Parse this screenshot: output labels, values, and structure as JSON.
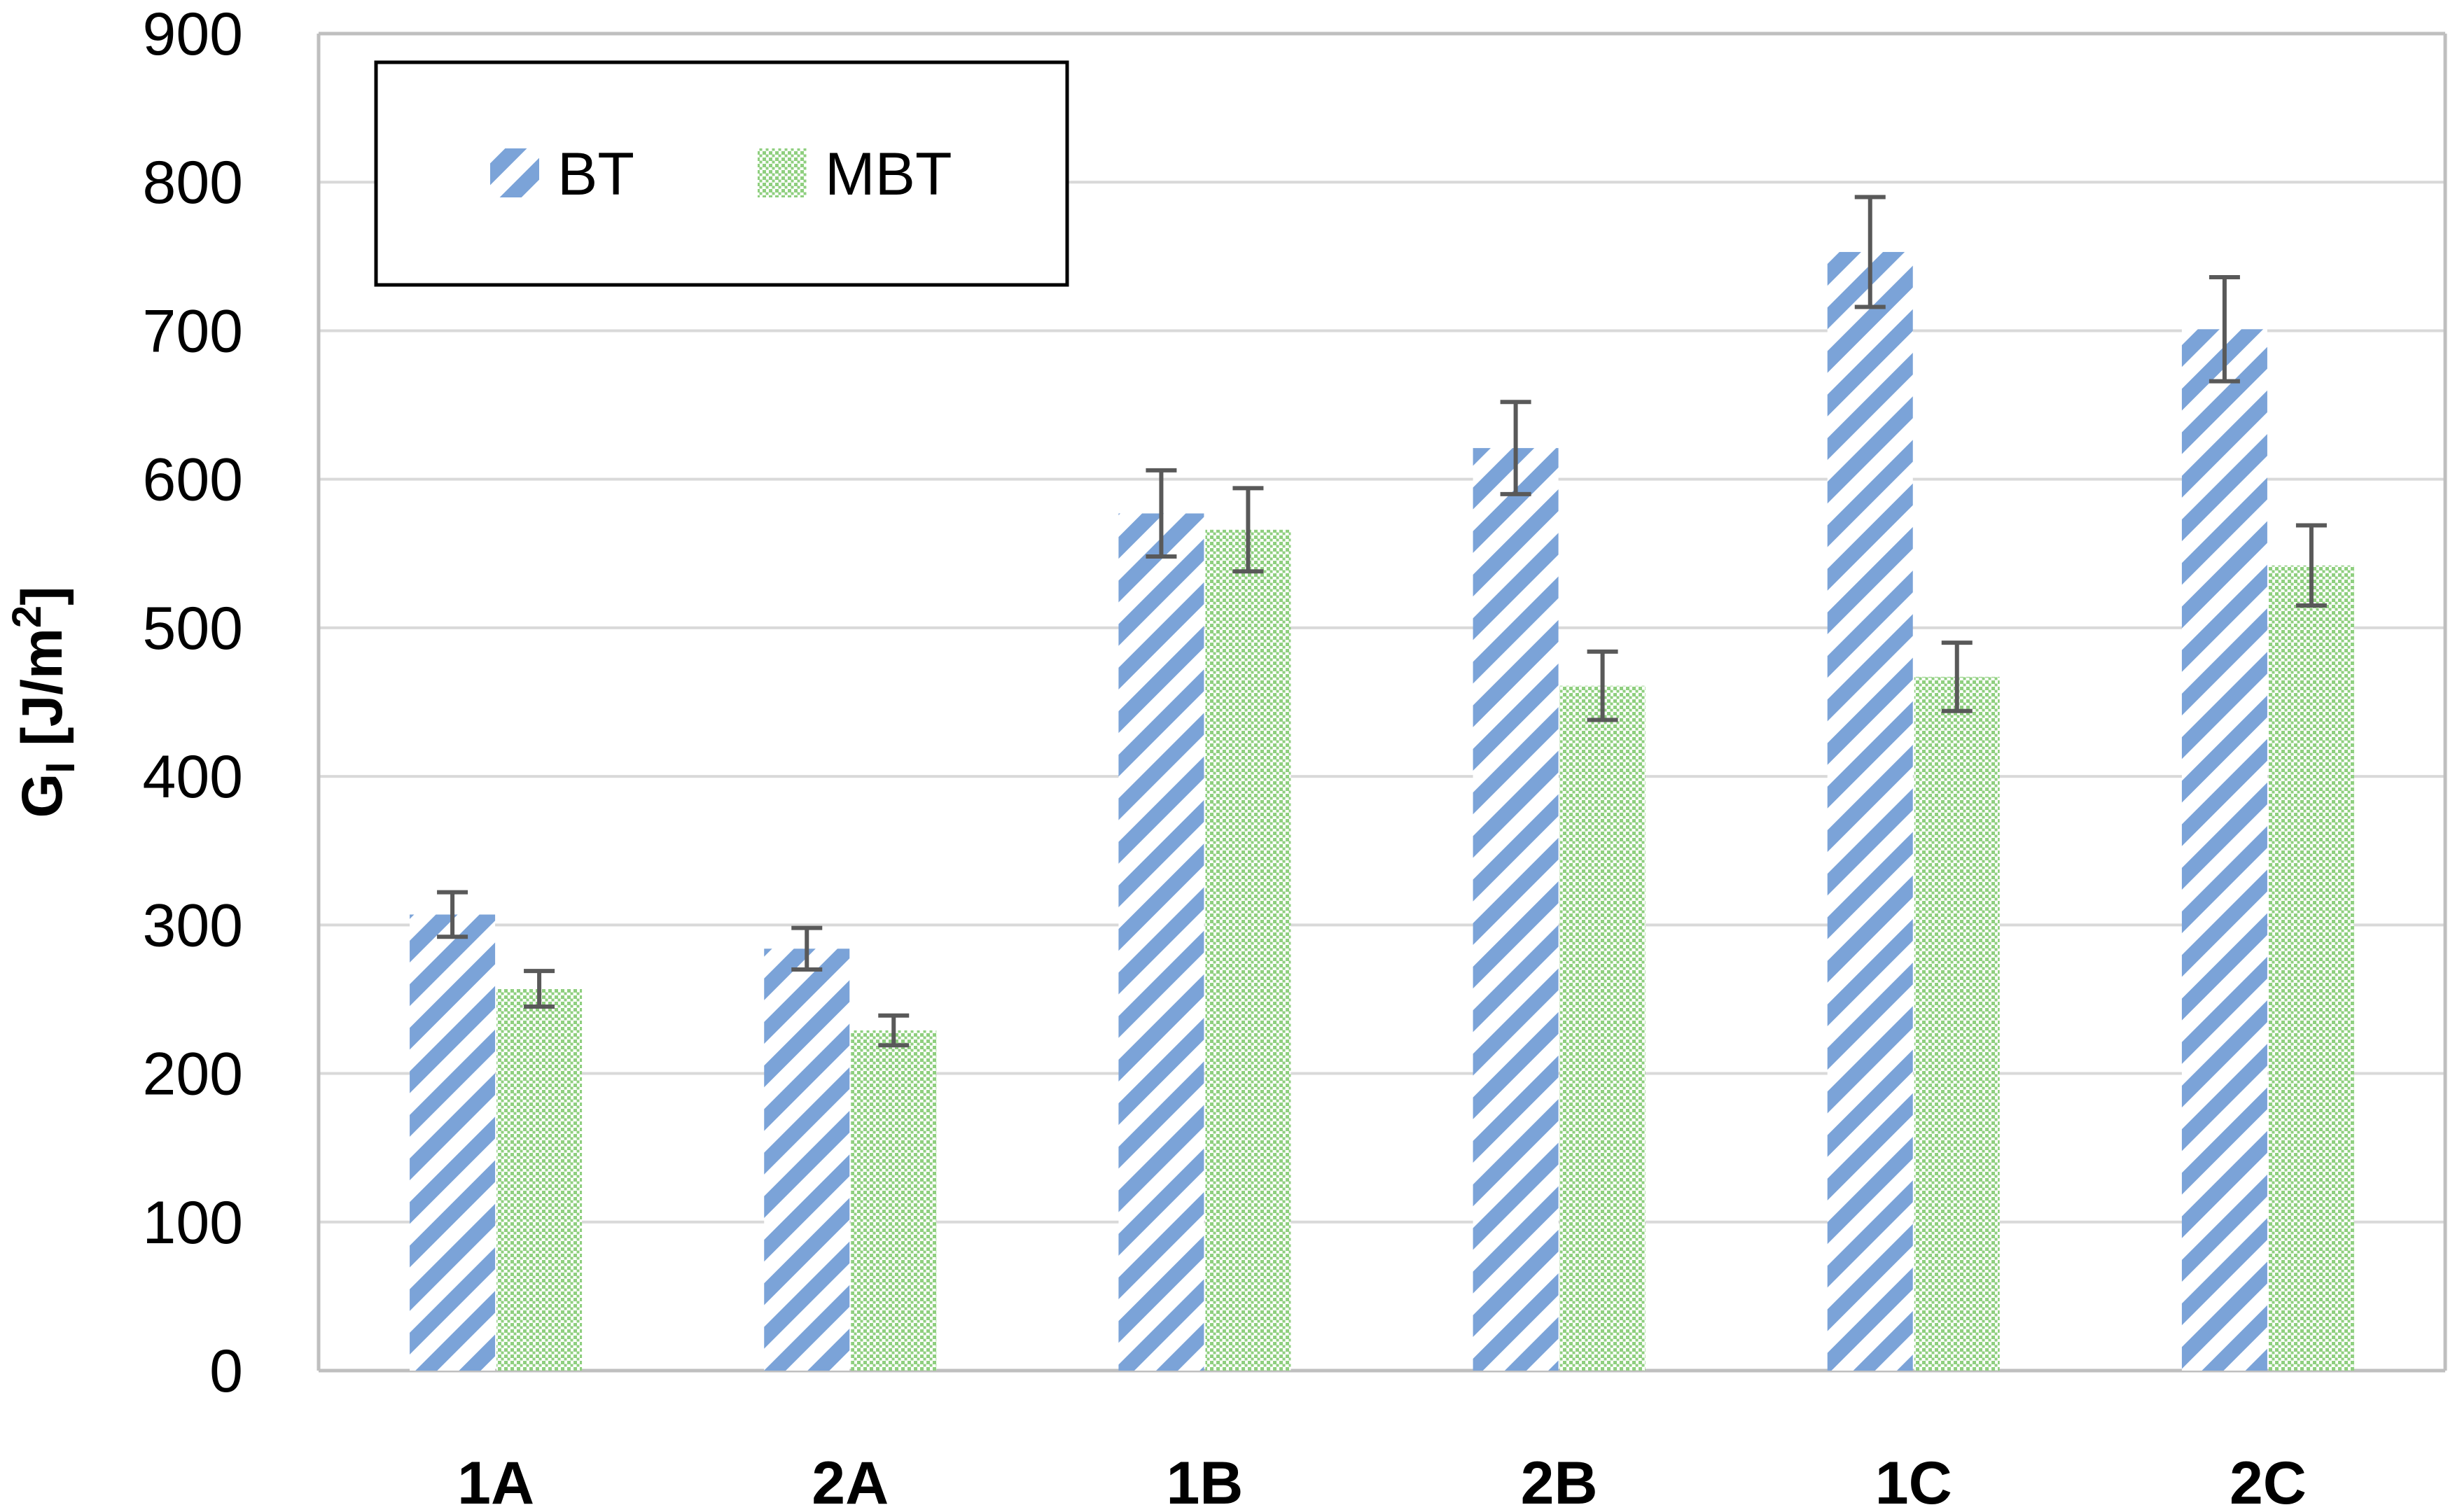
{
  "chart_data": {
    "type": "bar",
    "title": "",
    "xlabel": "",
    "ylabel": {
      "base": "G",
      "sub": "I",
      "unit_pre": " [J/m",
      "sup": "2",
      "unit_post": "]"
    },
    "ylim": [
      0,
      900
    ],
    "ytick_step": 100,
    "yticks": [
      "0",
      "100",
      "200",
      "300",
      "400",
      "500",
      "600",
      "700",
      "800",
      "900"
    ],
    "grid": true,
    "legend_position": "top-left",
    "categories": [
      "1A",
      "2A",
      "1B",
      "2B",
      "1C",
      "2C"
    ],
    "series": [
      {
        "name": "BT",
        "color": "#7ba3d8",
        "pattern": "diagonal-stripes",
        "values": [
          307,
          284,
          577,
          621,
          753,
          701
        ],
        "errors": [
          15,
          14,
          29,
          31,
          37,
          35
        ]
      },
      {
        "name": "MBT",
        "color": "#8fcf7f",
        "pattern": "dots",
        "values": [
          257,
          229,
          566,
          461,
          467,
          542
        ],
        "errors": [
          12,
          10,
          28,
          23,
          23,
          27
        ]
      }
    ],
    "error_bar_color": "#595959",
    "grid_color": "#d9d9d9",
    "axis_color": "#bfbfbf"
  }
}
